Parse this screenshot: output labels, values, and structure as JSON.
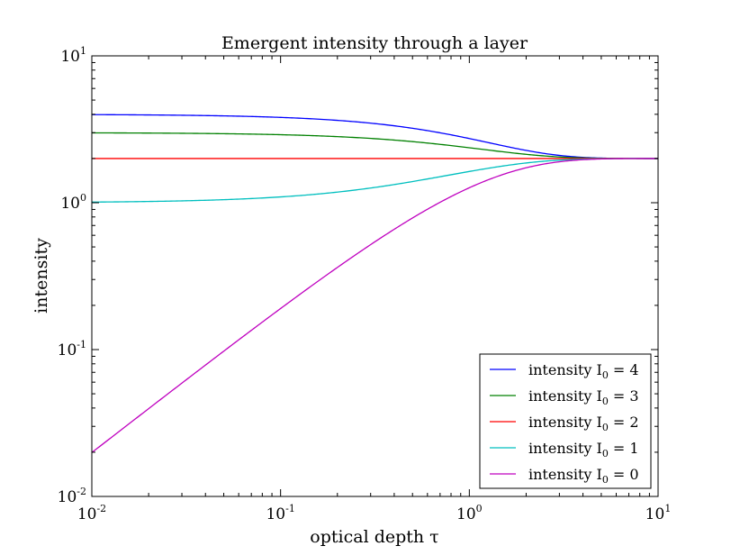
{
  "chart_data": {
    "type": "line",
    "title": "Emergent intensity through a layer",
    "xlabel": "optical depth τ",
    "ylabel": "intensity",
    "xscale": "log",
    "yscale": "log",
    "xlim": [
      0.01,
      10
    ],
    "ylim": [
      0.01,
      10
    ],
    "x_ticks": [
      {
        "value": 0.01,
        "base": "10",
        "exp": "-2"
      },
      {
        "value": 0.1,
        "base": "10",
        "exp": "-1"
      },
      {
        "value": 1,
        "base": "10",
        "exp": "0"
      },
      {
        "value": 10,
        "base": "10",
        "exp": "1"
      }
    ],
    "y_ticks": [
      {
        "value": 0.01,
        "base": "10",
        "exp": "-2"
      },
      {
        "value": 0.1,
        "base": "10",
        "exp": "-1"
      },
      {
        "value": 1,
        "base": "10",
        "exp": "0"
      },
      {
        "value": 10,
        "base": "10",
        "exp": "1"
      }
    ],
    "source_function": 2,
    "grid": false,
    "legend_position": "lower-right",
    "series": [
      {
        "name": "intensity I",
        "subscript": "0",
        "suffix": " = 4",
        "I0": 4,
        "color": "#0000ff"
      },
      {
        "name": "intensity I",
        "subscript": "0",
        "suffix": " = 3",
        "I0": 3,
        "color": "#008000"
      },
      {
        "name": "intensity I",
        "subscript": "0",
        "suffix": " = 2",
        "I0": 2,
        "color": "#ff0000"
      },
      {
        "name": "intensity I",
        "subscript": "0",
        "suffix": " = 1",
        "I0": 1,
        "color": "#00bfbf"
      },
      {
        "name": "intensity I",
        "subscript": "0",
        "suffix": " = 0",
        "I0": 0,
        "color": "#bf00bf"
      }
    ]
  }
}
